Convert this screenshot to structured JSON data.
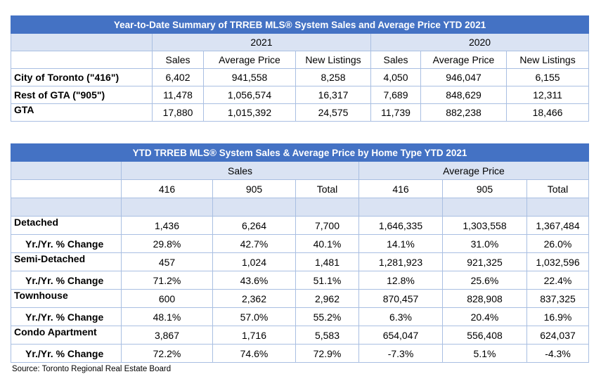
{
  "table1": {
    "title": "Year-to-Date Summary of TRREB MLS® System Sales and Average Price YTD 2021",
    "year_2021": "2021",
    "year_2020": "2020",
    "col_headers": [
      "Sales",
      "Average Price",
      "New Listings",
      "Sales",
      "Average Price",
      "New Listings"
    ],
    "rows": [
      {
        "label": "City of Toronto (\"416\")",
        "values": [
          "6,402",
          "941,558",
          "8,258",
          "4,050",
          "946,047",
          "6,155"
        ]
      },
      {
        "label": "Rest of GTA (\"905\")",
        "values": [
          "11,478",
          "1,056,574",
          "16,317",
          "7,689",
          "848,629",
          "12,311"
        ]
      },
      {
        "label": "GTA",
        "values": [
          "17,880",
          "1,015,392",
          "24,575",
          "11,739",
          "882,238",
          "18,466"
        ]
      }
    ]
  },
  "table2": {
    "title": "YTD TRREB MLS® System Sales & Average Price by Home Type YTD 2021",
    "group_sales": "Sales",
    "group_price": "Average Price",
    "col_headers": [
      "416",
      "905",
      "Total",
      "416",
      "905",
      "Total"
    ],
    "rows": [
      {
        "label": "Detached",
        "values": [
          "1,436",
          "6,264",
          "7,700",
          "1,646,335",
          "1,303,558",
          "1,367,484"
        ]
      },
      {
        "label": "Yr./Yr. % Change",
        "values": [
          "29.8%",
          "42.7%",
          "40.1%",
          "14.1%",
          "31.0%",
          "26.0%"
        ]
      },
      {
        "label": "Semi-Detached",
        "values": [
          "457",
          "1,024",
          "1,481",
          "1,281,923",
          "921,325",
          "1,032,596"
        ]
      },
      {
        "label": "Yr./Yr. % Change",
        "values": [
          "71.2%",
          "43.6%",
          "51.1%",
          "12.8%",
          "25.6%",
          "22.4%"
        ]
      },
      {
        "label": "Townhouse",
        "values": [
          "600",
          "2,362",
          "2,962",
          "870,457",
          "828,908",
          "837,325"
        ]
      },
      {
        "label": "Yr./Yr. % Change",
        "values": [
          "48.1%",
          "57.0%",
          "55.2%",
          "6.3%",
          "20.4%",
          "16.9%"
        ]
      },
      {
        "label": "Condo Apartment",
        "values": [
          "3,867",
          "1,716",
          "5,583",
          "654,047",
          "556,408",
          "624,037"
        ]
      },
      {
        "label": "Yr./Yr. % Change",
        "values": [
          "72.2%",
          "74.6%",
          "72.9%",
          "-7.3%",
          "5.1%",
          "-4.3%"
        ]
      }
    ]
  },
  "source": "Source: Toronto Regional Real Estate Board",
  "colors": {
    "header_blue": "#4472c4",
    "shade": "#dae3f3",
    "border": "#a9bfe2"
  }
}
